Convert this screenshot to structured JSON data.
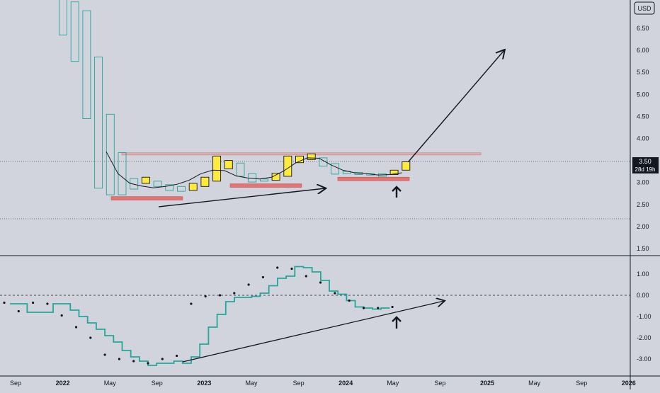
{
  "currency_label": "USD",
  "last_price_label": "3.50",
  "countdown_label": "28d 19h",
  "colors": {
    "background": "#d1d4dc",
    "up_candle": "#ffeb3b",
    "down_candle_border": "#26a69a",
    "indicator_line": "#26a69a",
    "support_zone": "#e57373",
    "resistance_line": "#c48b8b",
    "price_tag": "#131722"
  },
  "chart_data": [
    {
      "type": "candlestick",
      "timeframe": "monthly",
      "currency": "USD",
      "y_ticks": [
        "6.50",
        "6.00",
        "5.50",
        "5.00",
        "4.50",
        "4.00",
        "3.50",
        "3.00",
        "2.50",
        "2.00",
        "1.50"
      ],
      "x_labels": [
        "Sep",
        "2022",
        "May",
        "Sep",
        "2023",
        "May",
        "Sep",
        "2024",
        "May",
        "Sep",
        "2025",
        "May",
        "Sep",
        "2026"
      ],
      "candles": [
        {
          "open": 7.2,
          "close": 6.35,
          "color": "down"
        },
        {
          "open": 7.1,
          "close": 5.75,
          "color": "down"
        },
        {
          "open": 6.9,
          "close": 4.45,
          "color": "down"
        },
        {
          "open": 5.85,
          "close": 2.87,
          "color": "down"
        },
        {
          "open": 4.55,
          "close": 2.72,
          "color": "down"
        },
        {
          "open": 3.68,
          "close": 2.72,
          "color": "down"
        },
        {
          "open": 3.09,
          "close": 2.85,
          "color": "down"
        },
        {
          "open": 2.98,
          "close": 3.12,
          "color": "up"
        },
        {
          "open": 3.03,
          "close": 2.91,
          "color": "down"
        },
        {
          "open": 2.95,
          "close": 2.82,
          "color": "down"
        },
        {
          "open": 2.91,
          "close": 2.8,
          "color": "down"
        },
        {
          "open": 2.82,
          "close": 2.98,
          "color": "up"
        },
        {
          "open": 2.91,
          "close": 3.12,
          "color": "up"
        },
        {
          "open": 3.03,
          "close": 3.6,
          "color": "up"
        },
        {
          "open": 3.31,
          "close": 3.5,
          "color": "up"
        },
        {
          "open": 3.44,
          "close": 3.14,
          "color": "down"
        },
        {
          "open": 3.2,
          "close": 3.01,
          "color": "down"
        },
        {
          "open": 3.08,
          "close": 3.03,
          "color": "down"
        },
        {
          "open": 3.05,
          "close": 3.21,
          "color": "up"
        },
        {
          "open": 3.14,
          "close": 3.6,
          "color": "up"
        },
        {
          "open": 3.45,
          "close": 3.6,
          "color": "up"
        },
        {
          "open": 3.52,
          "close": 3.65,
          "color": "up"
        },
        {
          "open": 3.56,
          "close": 3.37,
          "color": "down"
        },
        {
          "open": 3.43,
          "close": 3.19,
          "color": "down"
        },
        {
          "open": 3.25,
          "close": 3.2,
          "color": "down"
        },
        {
          "open": 3.23,
          "close": 3.18,
          "color": "down"
        },
        {
          "open": 3.2,
          "close": 3.17,
          "color": "down"
        },
        {
          "open": 3.2,
          "close": 3.14,
          "color": "down"
        },
        {
          "open": 3.18,
          "close": 3.28,
          "color": "up"
        },
        {
          "open": 3.28,
          "close": 3.47,
          "color": "up"
        }
      ],
      "moving_average": [
        3.7,
        3.2,
        2.98,
        2.92,
        2.88,
        2.91,
        2.96,
        3.05,
        3.2,
        3.28,
        3.27,
        3.15,
        3.1,
        3.08,
        3.12,
        3.26,
        3.44,
        3.56,
        3.55,
        3.4,
        3.28,
        3.22,
        3.2,
        3.17,
        3.18,
        3.22
      ],
      "last_price": 3.5,
      "resistance": 3.65,
      "support_zones": [
        {
          "from": 2.63,
          "to": 2.68
        },
        {
          "from": 2.91,
          "to": 2.97
        },
        {
          "from": 3.06,
          "to": 3.12
        }
      ]
    },
    {
      "type": "line",
      "style": "step",
      "y_ticks": [
        "1.00",
        "0.00",
        "-1.00",
        "-2.00",
        "-3.00"
      ],
      "zero_line": 0.0,
      "line_values": [
        -0.4,
        -0.4,
        -0.8,
        -0.8,
        -0.8,
        -0.4,
        -0.4,
        -0.7,
        -1.0,
        -1.3,
        -1.6,
        -1.9,
        -2.2,
        -2.6,
        -2.9,
        -3.1,
        -3.3,
        -3.2,
        -3.2,
        -3.1,
        -3.2,
        -2.9,
        -2.3,
        -1.5,
        -0.9,
        -0.3,
        -0.1,
        -0.1,
        -0.05,
        0.1,
        0.45,
        0.8,
        0.9,
        1.35,
        1.3,
        1.1,
        0.7,
        0.2,
        0.05,
        -0.25,
        -0.55,
        -0.6,
        -0.65,
        -0.6
      ],
      "dot_values": [
        -0.35,
        -0.75,
        -0.35,
        -0.4,
        -0.95,
        -1.5,
        -2.0,
        -2.8,
        -3.0,
        -3.1,
        -3.2,
        -3.0,
        -2.85,
        -0.4,
        -0.05,
        0.0,
        0.1,
        0.5,
        0.85,
        1.3,
        1.25,
        0.9,
        0.6,
        0.1,
        -0.25,
        -0.6,
        -0.6,
        -0.55
      ],
      "trend_line": {
        "from": -3.2,
        "to": -0.3
      }
    }
  ]
}
